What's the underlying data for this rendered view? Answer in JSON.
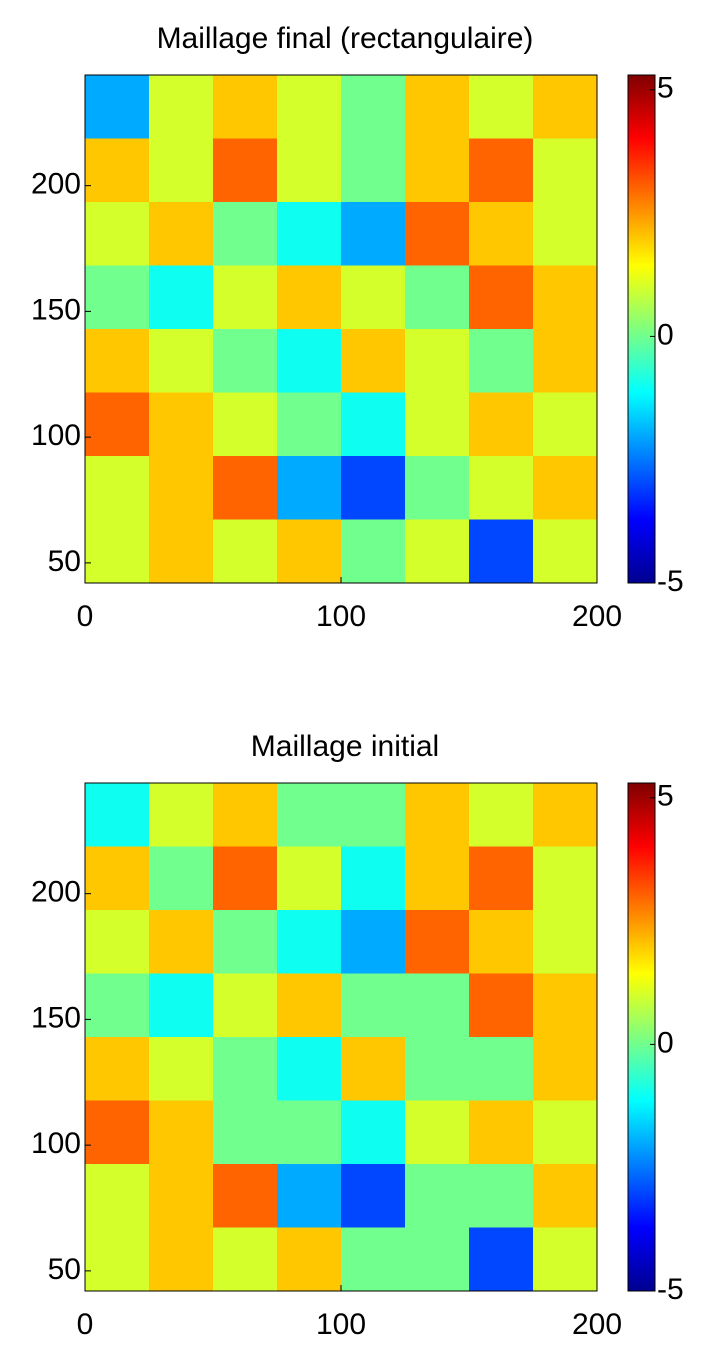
{
  "chart_data": [
    {
      "type": "heatmap",
      "title": "Maillage final (rectangulaire)",
      "colormap": "jet",
      "xlim": [
        0,
        200
      ],
      "ylim": [
        42,
        244
      ],
      "xticks": [
        0,
        100,
        200
      ],
      "yticks": [
        50,
        100,
        150,
        200
      ],
      "clim": [
        -5,
        5.3
      ],
      "cticks": [
        -5,
        0,
        5
      ],
      "z": [
        [
          -2,
          1,
          2,
          1,
          0,
          2,
          1,
          2
        ],
        [
          2,
          1,
          3,
          1,
          0,
          2,
          3,
          1
        ],
        [
          1,
          2,
          0,
          -1,
          -2,
          3,
          2,
          1
        ],
        [
          0,
          -1,
          1,
          2,
          1,
          0,
          3,
          2
        ],
        [
          2,
          1,
          0,
          -1,
          2,
          1,
          0,
          2
        ],
        [
          3,
          2,
          1,
          0,
          -1,
          1,
          2,
          1
        ],
        [
          1,
          2,
          3,
          -2,
          -3,
          0,
          1,
          2
        ],
        [
          1,
          2,
          1,
          2,
          0,
          1,
          -3,
          1
        ]
      ]
    },
    {
      "type": "heatmap",
      "title": "Maillage initial",
      "colormap": "jet",
      "xlim": [
        0,
        200
      ],
      "ylim": [
        42,
        244
      ],
      "xticks": [
        0,
        100,
        200
      ],
      "yticks": [
        50,
        100,
        150,
        200
      ],
      "clim": [
        -5,
        5.3
      ],
      "cticks": [
        -5,
        0,
        5
      ],
      "z": [
        [
          -1,
          1,
          2,
          0,
          0,
          2,
          1,
          2
        ],
        [
          2,
          0,
          3,
          1,
          -1,
          2,
          3,
          1
        ],
        [
          1,
          2,
          0,
          -1,
          -2,
          3,
          2,
          1
        ],
        [
          0,
          -1,
          1,
          2,
          0,
          0,
          3,
          2
        ],
        [
          2,
          1,
          0,
          -1,
          2,
          0,
          0,
          2
        ],
        [
          3,
          2,
          0,
          0,
          -1,
          1,
          2,
          1
        ],
        [
          1,
          2,
          3,
          -2,
          -3,
          0,
          0,
          2
        ],
        [
          1,
          2,
          1,
          2,
          0,
          0,
          -3,
          1
        ]
      ]
    }
  ]
}
